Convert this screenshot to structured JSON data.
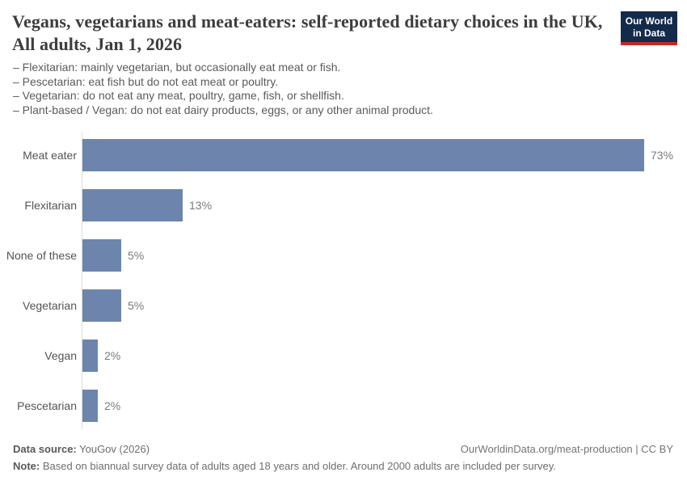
{
  "logo": {
    "line1": "Our World",
    "line2": "in Data",
    "bg_color": "#142a4b",
    "stripe_color": "#c22a27"
  },
  "header": {
    "title": "Vegans, vegetarians and meat-eaters: self-reported dietary choices in the UK, All adults, Jan 1, 2026",
    "subtitle_lines": [
      "– Flexitarian: mainly vegetarian, but occasionally eat meat or fish.",
      "– Pescetarian: eat fish but do not eat meat or poultry.",
      "– Vegetarian: do not eat any meat, poultry, game, fish, or shellfish.",
      "– Plant-based / Vegan: do not eat dairy products, eggs, or any other animal product."
    ]
  },
  "chart_data": {
    "type": "bar",
    "orientation": "horizontal",
    "title": "Vegans, vegetarians and meat-eaters: self-reported dietary choices in the UK, All adults, Jan 1, 2026",
    "categories": [
      "Meat eater",
      "Flexitarian",
      "None of these",
      "Vegetarian",
      "Vegan",
      "Pescetarian"
    ],
    "values": [
      73,
      13,
      5,
      5,
      2,
      2
    ],
    "value_labels": [
      "73%",
      "13%",
      "5%",
      "5%",
      "2%",
      "2%"
    ],
    "unit": "%",
    "xlim": [
      0,
      73
    ],
    "grid": false,
    "legend": "none",
    "bar_color": "#6d85ac",
    "axis_line_color": "#dcdcdc"
  },
  "footer": {
    "source_label": "Data source:",
    "source_value": " YouGov (2026)",
    "attribution": "OurWorldinData.org/meat-production | CC BY",
    "note_label": "Note:",
    "note_value": " Based on biannual survey data of adults aged 18 years and older. Around 2000 adults are included per survey."
  }
}
